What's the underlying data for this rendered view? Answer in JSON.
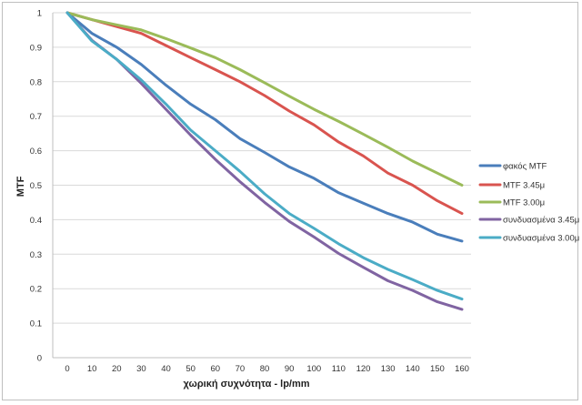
{
  "chart_data": {
    "type": "line",
    "title": "",
    "xlabel": "χωρική συχνότητα - lp/mm",
    "ylabel": "MTF",
    "xlim": [
      0,
      160
    ],
    "ylim": [
      0,
      1
    ],
    "x": [
      0,
      10,
      20,
      30,
      40,
      50,
      60,
      70,
      80,
      90,
      100,
      110,
      120,
      130,
      140,
      150,
      160
    ],
    "x_tick_labels": [
      "0",
      "10",
      "20",
      "30",
      "40",
      "50",
      "60",
      "70",
      "80",
      "90",
      "100",
      "110",
      "120",
      "130",
      "140",
      "150",
      "160"
    ],
    "y_tick_labels": [
      "0",
      "0.1",
      "0.2",
      "0.3",
      "0.4",
      "0.5",
      "0.6",
      "0.7",
      "0.8",
      "0.9",
      "1"
    ],
    "y_ticks": [
      0,
      0.1,
      0.2,
      0.3,
      0.4,
      0.5,
      0.6,
      0.7,
      0.8,
      0.9,
      1
    ],
    "grid": "horizontal",
    "legend_position": "right",
    "series": [
      {
        "name": "φακός MTF",
        "color": "#4a7ebb",
        "values": [
          1.0,
          0.94,
          0.9,
          0.85,
          0.79,
          0.735,
          0.69,
          0.635,
          0.595,
          0.553,
          0.52,
          0.478,
          0.448,
          0.418,
          0.393,
          0.358,
          0.338
        ]
      },
      {
        "name": "MTF 3.45μ",
        "color": "#d9544f",
        "values": [
          1.0,
          0.98,
          0.96,
          0.94,
          0.905,
          0.87,
          0.835,
          0.8,
          0.76,
          0.715,
          0.675,
          0.625,
          0.585,
          0.535,
          0.5,
          0.455,
          0.418
        ]
      },
      {
        "name": "MTF 3.00μ",
        "color": "#9bbb59",
        "values": [
          1.0,
          0.98,
          0.965,
          0.95,
          0.925,
          0.898,
          0.87,
          0.835,
          0.797,
          0.758,
          0.72,
          0.685,
          0.648,
          0.61,
          0.57,
          0.535,
          0.5
        ]
      },
      {
        "name": "συνδυασμένα 3.45μ",
        "color": "#8064a2",
        "values": [
          1.0,
          0.92,
          0.865,
          0.795,
          0.72,
          0.645,
          0.575,
          0.51,
          0.45,
          0.395,
          0.35,
          0.302,
          0.262,
          0.223,
          0.195,
          0.162,
          0.14
        ]
      },
      {
        "name": "συνδυασμένα 3.00μ",
        "color": "#4bacc6",
        "values": [
          1.0,
          0.918,
          0.865,
          0.805,
          0.735,
          0.66,
          0.6,
          0.54,
          0.475,
          0.418,
          0.375,
          0.33,
          0.29,
          0.256,
          0.226,
          0.195,
          0.17
        ]
      }
    ]
  }
}
